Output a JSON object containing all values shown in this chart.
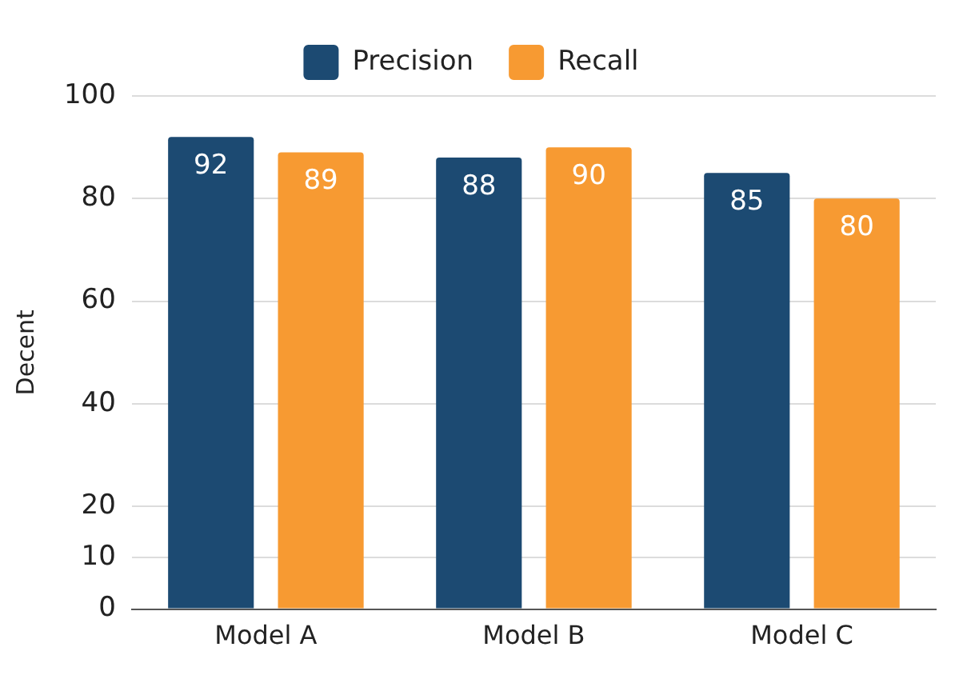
{
  "chart_data": {
    "type": "bar",
    "ylabel": "Decent",
    "categories": [
      "Model A",
      "Model B",
      "Model C"
    ],
    "series": [
      {
        "name": "Precision",
        "color": "#1c4a72",
        "values": [
          92,
          88,
          85
        ]
      },
      {
        "name": "Recall",
        "color": "#f79a32",
        "values": [
          89,
          90,
          80
        ]
      }
    ],
    "ylim": [
      0,
      100
    ],
    "yticks": [
      0,
      10,
      20,
      40,
      60,
      80,
      100
    ],
    "grid": "y",
    "legend": "top",
    "data_labels": true
  }
}
